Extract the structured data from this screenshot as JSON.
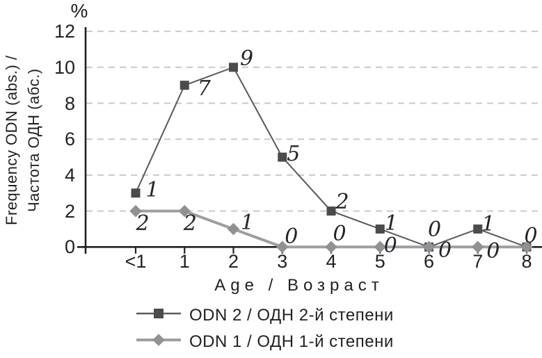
{
  "chart_data": {
    "type": "line",
    "percent_label": "%",
    "xlabel": "Age / Возраст",
    "ylabel_line1": "Frequency ODN (abs.) /",
    "ylabel_line2": "Частота ОДН (абс.)",
    "x_categories": [
      "<1",
      "1",
      "2",
      "3",
      "4",
      "5",
      "6",
      "7",
      "8"
    ],
    "ylim": [
      0,
      12
    ],
    "yticks": [
      0,
      2,
      4,
      6,
      8,
      10,
      12
    ],
    "grid": "horizontal dashed",
    "legend_position": "bottom-left",
    "stacking_note": "Second-degree series is plotted stacked on top of first-degree series; italic data labels show the per-series absolute values",
    "axis_color": "#231f20",
    "grid_color": "#c9c9c9",
    "series": [
      {
        "name": "ODN 2 / ОДН 2-й степени",
        "marker": "square",
        "values": [
          1,
          7,
          9,
          5,
          2,
          1,
          0,
          1,
          0
        ],
        "plotted_y": [
          3,
          9,
          10,
          5,
          2,
          1,
          0,
          1,
          0
        ],
        "labels": [
          "1",
          "7",
          "9",
          "5",
          "2",
          "1",
          "0",
          "1",
          "0"
        ],
        "label_offsets": [
          [
            24,
            -4
          ],
          [
            28,
            5
          ],
          [
            19,
            -12
          ],
          [
            16,
            -4
          ],
          [
            16,
            -13
          ],
          [
            16,
            -7
          ],
          [
            8,
            -24
          ],
          [
            15,
            -6
          ],
          [
            6,
            -15
          ]
        ],
        "line_color": "#58595b",
        "marker_color": "#4a4b4d",
        "line_width": 2
      },
      {
        "name": "ODN 1 / ОДН 1-й степени",
        "marker": "diamond",
        "values": [
          2,
          2,
          1,
          0,
          0,
          0,
          0,
          0,
          0
        ],
        "plotted_y": [
          2,
          2,
          1,
          0,
          0,
          0,
          0,
          0,
          0
        ],
        "labels": [
          "2",
          "2",
          "1",
          "0",
          "0",
          "0",
          "0",
          "0",
          ""
        ],
        "label_offsets": [
          [
            10,
            18
          ],
          [
            8,
            18
          ],
          [
            20,
            -8
          ],
          [
            13,
            -14
          ],
          [
            12,
            -18
          ],
          [
            15,
            -1
          ],
          [
            23,
            6
          ],
          [
            22,
            7
          ],
          [
            0,
            0
          ]
        ],
        "line_color": "#9d9fa1",
        "marker_color": "#8f9194",
        "line_width": 4
      }
    ]
  }
}
